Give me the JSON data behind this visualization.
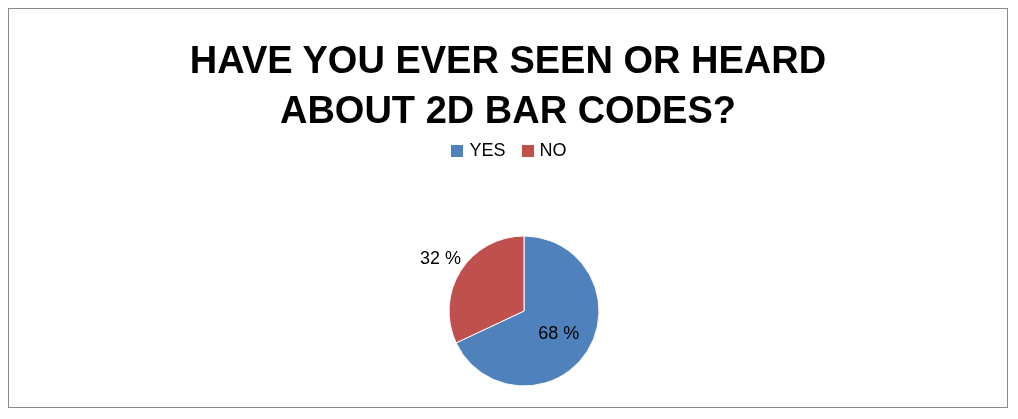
{
  "chart_data": {
    "type": "pie",
    "title": "HAVE YOU EVER SEEN OR HEARD ABOUT 2D BAR CODES?",
    "categories": [
      "YES",
      "NO"
    ],
    "values": [
      68,
      32
    ],
    "colors": [
      "#4f81bd",
      "#c0504d"
    ],
    "value_labels": [
      "68 %",
      "32 %"
    ],
    "legend": "top"
  }
}
